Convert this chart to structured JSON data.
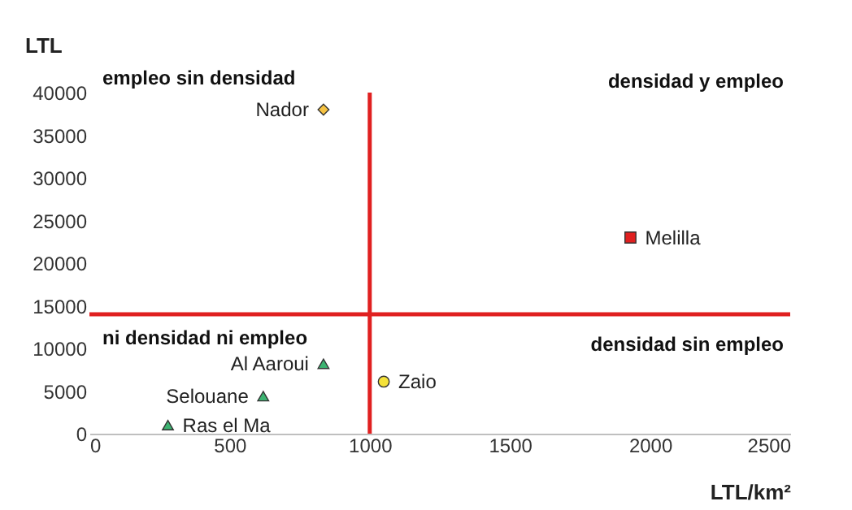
{
  "chart_data": {
    "type": "scatter",
    "xlabel": "LTL/km²",
    "ylabel": "LTL",
    "xlim": [
      0,
      2500
    ],
    "xticks": [
      0,
      500,
      1000,
      1500,
      2000,
      2500
    ],
    "ylim": [
      0,
      40000
    ],
    "yticks": [
      0,
      5000,
      10000,
      15000,
      20000,
      25000,
      30000,
      35000,
      40000
    ],
    "grid": false,
    "legend": false,
    "series": [
      {
        "name": "Nador",
        "color": "#f5c242",
        "marker": "diamond",
        "x": [
          835
        ],
        "values": [
          38000
        ]
      },
      {
        "name": "Melilla",
        "color": "#e02020",
        "marker": "square",
        "x": [
          1930
        ],
        "values": [
          23000
        ]
      },
      {
        "name": "Zaio",
        "color": "#f5e23a",
        "marker": "circle",
        "x": [
          1050
        ],
        "values": [
          6100
        ]
      },
      {
        "name": "Al Aaroui",
        "color": "#3cb371",
        "marker": "triangle",
        "x": [
          835
        ],
        "values": [
          8200
        ]
      },
      {
        "name": "Selouane",
        "color": "#3cb371",
        "marker": "triangle",
        "x": [
          620
        ],
        "values": [
          4400
        ]
      },
      {
        "name": "Ras el Ma",
        "color": "#3cb371",
        "marker": "triangle",
        "x": [
          280
        ],
        "values": [
          1000
        ]
      }
    ],
    "ref_lines": [
      {
        "axis": "x",
        "value": 1000,
        "color": "#e02020"
      },
      {
        "axis": "y",
        "value": 14000,
        "color": "#e02020"
      }
    ],
    "annotations": [
      "empleo sin densidad",
      "densidad y empleo",
      "ni densidad ni empleo",
      "densidad sin empleo"
    ]
  }
}
